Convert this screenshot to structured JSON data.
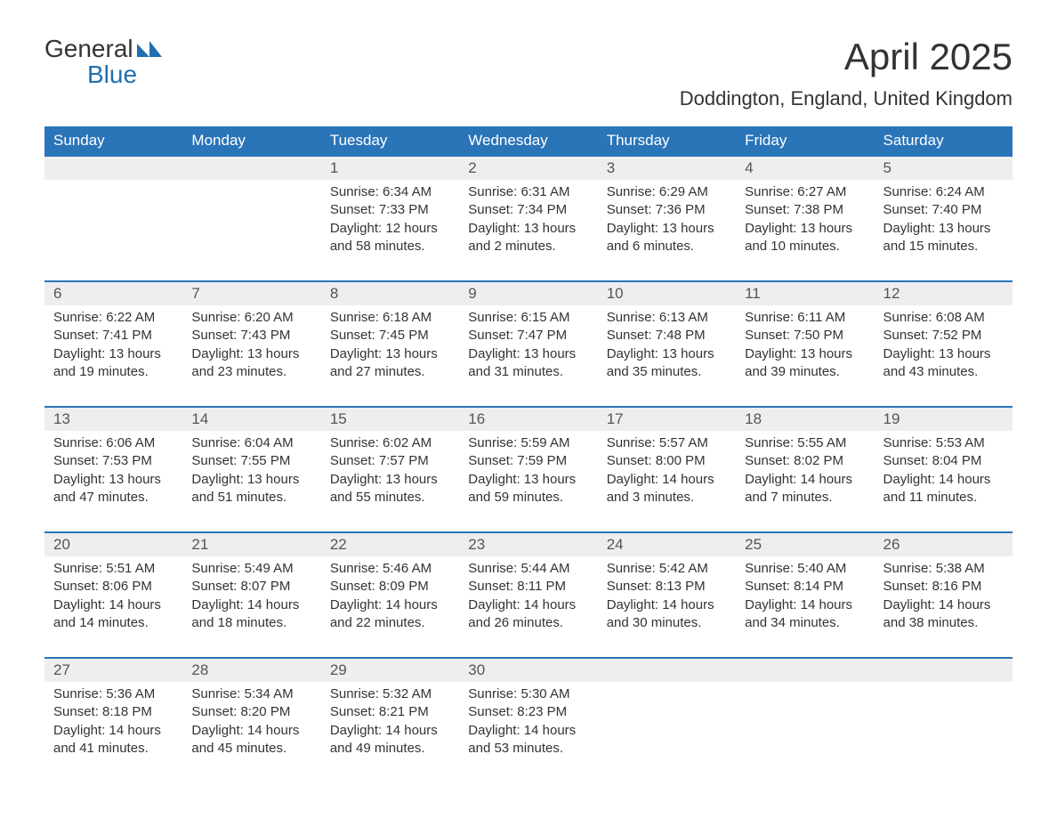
{
  "logo": {
    "top": "General",
    "bottom": "Blue",
    "icon_color": "#1f6fb2"
  },
  "title": "April 2025",
  "subtitle": "Doddington, England, United Kingdom",
  "colors": {
    "header_bg": "#2a74b8",
    "header_text": "#ffffff",
    "daynum_bg": "#eeeeee",
    "daynum_border": "#2a74b8",
    "text": "#333333",
    "logo_blue": "#1f6fb2",
    "page_bg": "#ffffff"
  },
  "font_sizes": {
    "title": 42,
    "subtitle": 22,
    "logo": 28,
    "weekday_header": 17,
    "daynum": 17,
    "cell": 15
  },
  "weekdays": [
    "Sunday",
    "Monday",
    "Tuesday",
    "Wednesday",
    "Thursday",
    "Friday",
    "Saturday"
  ],
  "weeks": [
    {
      "daynums": [
        "",
        "",
        "1",
        "2",
        "3",
        "4",
        "5"
      ],
      "cells": [
        {
          "sunrise": "",
          "sunset": "",
          "daylight": ""
        },
        {
          "sunrise": "",
          "sunset": "",
          "daylight": ""
        },
        {
          "sunrise": "Sunrise: 6:34 AM",
          "sunset": "Sunset: 7:33 PM",
          "daylight": "Daylight: 12 hours and 58 minutes."
        },
        {
          "sunrise": "Sunrise: 6:31 AM",
          "sunset": "Sunset: 7:34 PM",
          "daylight": "Daylight: 13 hours and 2 minutes."
        },
        {
          "sunrise": "Sunrise: 6:29 AM",
          "sunset": "Sunset: 7:36 PM",
          "daylight": "Daylight: 13 hours and 6 minutes."
        },
        {
          "sunrise": "Sunrise: 6:27 AM",
          "sunset": "Sunset: 7:38 PM",
          "daylight": "Daylight: 13 hours and 10 minutes."
        },
        {
          "sunrise": "Sunrise: 6:24 AM",
          "sunset": "Sunset: 7:40 PM",
          "daylight": "Daylight: 13 hours and 15 minutes."
        }
      ]
    },
    {
      "daynums": [
        "6",
        "7",
        "8",
        "9",
        "10",
        "11",
        "12"
      ],
      "cells": [
        {
          "sunrise": "Sunrise: 6:22 AM",
          "sunset": "Sunset: 7:41 PM",
          "daylight": "Daylight: 13 hours and 19 minutes."
        },
        {
          "sunrise": "Sunrise: 6:20 AM",
          "sunset": "Sunset: 7:43 PM",
          "daylight": "Daylight: 13 hours and 23 minutes."
        },
        {
          "sunrise": "Sunrise: 6:18 AM",
          "sunset": "Sunset: 7:45 PM",
          "daylight": "Daylight: 13 hours and 27 minutes."
        },
        {
          "sunrise": "Sunrise: 6:15 AM",
          "sunset": "Sunset: 7:47 PM",
          "daylight": "Daylight: 13 hours and 31 minutes."
        },
        {
          "sunrise": "Sunrise: 6:13 AM",
          "sunset": "Sunset: 7:48 PM",
          "daylight": "Daylight: 13 hours and 35 minutes."
        },
        {
          "sunrise": "Sunrise: 6:11 AM",
          "sunset": "Sunset: 7:50 PM",
          "daylight": "Daylight: 13 hours and 39 minutes."
        },
        {
          "sunrise": "Sunrise: 6:08 AM",
          "sunset": "Sunset: 7:52 PM",
          "daylight": "Daylight: 13 hours and 43 minutes."
        }
      ]
    },
    {
      "daynums": [
        "13",
        "14",
        "15",
        "16",
        "17",
        "18",
        "19"
      ],
      "cells": [
        {
          "sunrise": "Sunrise: 6:06 AM",
          "sunset": "Sunset: 7:53 PM",
          "daylight": "Daylight: 13 hours and 47 minutes."
        },
        {
          "sunrise": "Sunrise: 6:04 AM",
          "sunset": "Sunset: 7:55 PM",
          "daylight": "Daylight: 13 hours and 51 minutes."
        },
        {
          "sunrise": "Sunrise: 6:02 AM",
          "sunset": "Sunset: 7:57 PM",
          "daylight": "Daylight: 13 hours and 55 minutes."
        },
        {
          "sunrise": "Sunrise: 5:59 AM",
          "sunset": "Sunset: 7:59 PM",
          "daylight": "Daylight: 13 hours and 59 minutes."
        },
        {
          "sunrise": "Sunrise: 5:57 AM",
          "sunset": "Sunset: 8:00 PM",
          "daylight": "Daylight: 14 hours and 3 minutes."
        },
        {
          "sunrise": "Sunrise: 5:55 AM",
          "sunset": "Sunset: 8:02 PM",
          "daylight": "Daylight: 14 hours and 7 minutes."
        },
        {
          "sunrise": "Sunrise: 5:53 AM",
          "sunset": "Sunset: 8:04 PM",
          "daylight": "Daylight: 14 hours and 11 minutes."
        }
      ]
    },
    {
      "daynums": [
        "20",
        "21",
        "22",
        "23",
        "24",
        "25",
        "26"
      ],
      "cells": [
        {
          "sunrise": "Sunrise: 5:51 AM",
          "sunset": "Sunset: 8:06 PM",
          "daylight": "Daylight: 14 hours and 14 minutes."
        },
        {
          "sunrise": "Sunrise: 5:49 AM",
          "sunset": "Sunset: 8:07 PM",
          "daylight": "Daylight: 14 hours and 18 minutes."
        },
        {
          "sunrise": "Sunrise: 5:46 AM",
          "sunset": "Sunset: 8:09 PM",
          "daylight": "Daylight: 14 hours and 22 minutes."
        },
        {
          "sunrise": "Sunrise: 5:44 AM",
          "sunset": "Sunset: 8:11 PM",
          "daylight": "Daylight: 14 hours and 26 minutes."
        },
        {
          "sunrise": "Sunrise: 5:42 AM",
          "sunset": "Sunset: 8:13 PM",
          "daylight": "Daylight: 14 hours and 30 minutes."
        },
        {
          "sunrise": "Sunrise: 5:40 AM",
          "sunset": "Sunset: 8:14 PM",
          "daylight": "Daylight: 14 hours and 34 minutes."
        },
        {
          "sunrise": "Sunrise: 5:38 AM",
          "sunset": "Sunset: 8:16 PM",
          "daylight": "Daylight: 14 hours and 38 minutes."
        }
      ]
    },
    {
      "daynums": [
        "27",
        "28",
        "29",
        "30",
        "",
        "",
        ""
      ],
      "cells": [
        {
          "sunrise": "Sunrise: 5:36 AM",
          "sunset": "Sunset: 8:18 PM",
          "daylight": "Daylight: 14 hours and 41 minutes."
        },
        {
          "sunrise": "Sunrise: 5:34 AM",
          "sunset": "Sunset: 8:20 PM",
          "daylight": "Daylight: 14 hours and 45 minutes."
        },
        {
          "sunrise": "Sunrise: 5:32 AM",
          "sunset": "Sunset: 8:21 PM",
          "daylight": "Daylight: 14 hours and 49 minutes."
        },
        {
          "sunrise": "Sunrise: 5:30 AM",
          "sunset": "Sunset: 8:23 PM",
          "daylight": "Daylight: 14 hours and 53 minutes."
        },
        {
          "sunrise": "",
          "sunset": "",
          "daylight": ""
        },
        {
          "sunrise": "",
          "sunset": "",
          "daylight": ""
        },
        {
          "sunrise": "",
          "sunset": "",
          "daylight": ""
        }
      ]
    }
  ]
}
